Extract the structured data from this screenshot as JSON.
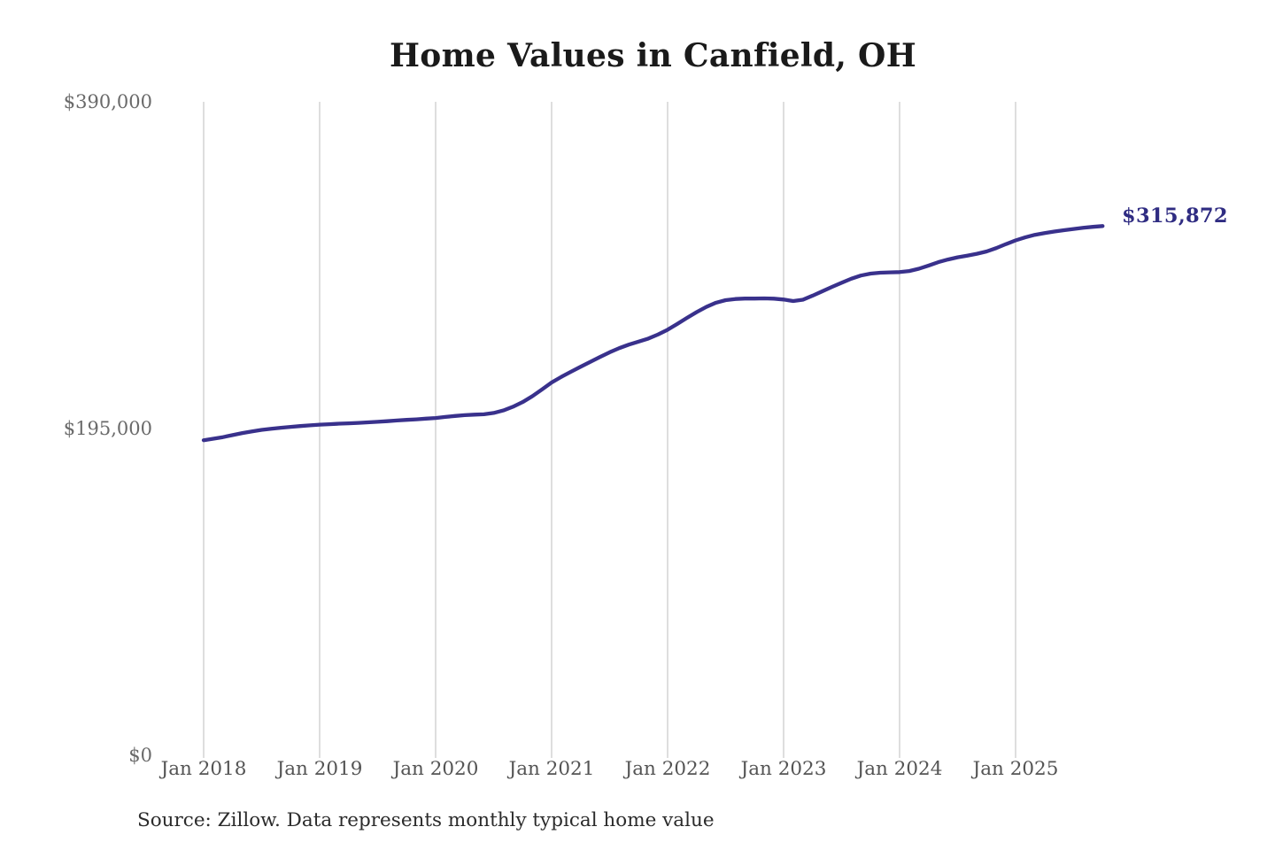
{
  "chart": {
    "title": "Home Values in Canfield, OH",
    "end_label": "$315,872",
    "source_note": "Source: Zillow. Data represents monthly typical home value"
  },
  "chart_data": {
    "type": "line",
    "title": "Home Values in Canfield, OH",
    "xlabel": "",
    "ylabel": "",
    "ylim": [
      0,
      390000
    ],
    "grid": "vertical-only",
    "legend": "none",
    "x_ticks": [
      "Jan 2018",
      "Jan 2019",
      "Jan 2020",
      "Jan 2021",
      "Jan 2022",
      "Jan 2023",
      "Jan 2024",
      "Jan 2025"
    ],
    "y_ticks": [
      {
        "label": "$0",
        "value": 0
      },
      {
        "label": "$195,000",
        "value": 195000
      },
      {
        "label": "$390,000",
        "value": 390000
      }
    ],
    "series": [
      {
        "name": "Monthly typical home value",
        "unit": "USD",
        "frequency": "monthly",
        "start_month": "Jan 2018",
        "end_month": "Oct 2025",
        "final_value": 315872,
        "values": [
          188000,
          188900,
          189900,
          191100,
          192300,
          193300,
          194200,
          194900,
          195500,
          196000,
          196500,
          196900,
          197300,
          197600,
          197900,
          198100,
          198400,
          198700,
          199000,
          199400,
          199800,
          200200,
          200500,
          200900,
          201300,
          201900,
          202500,
          203000,
          203300,
          203500,
          204300,
          205800,
          208000,
          210800,
          214300,
          218300,
          222500,
          225800,
          228900,
          231900,
          234800,
          237700,
          240500,
          243000,
          245100,
          246900,
          248700,
          251100,
          254000,
          257400,
          261000,
          264500,
          267600,
          270100,
          271600,
          272300,
          272600,
          272600,
          272700,
          272500,
          272000,
          271100,
          271900,
          274300,
          276900,
          279500,
          282000,
          284400,
          286300,
          287500,
          288000,
          288200,
          288400,
          289000,
          290400,
          292300,
          294300,
          295900,
          297200,
          298200,
          299300,
          300700,
          302700,
          305100,
          307300,
          309100,
          310600,
          311700,
          312600,
          313400,
          314100,
          314800,
          315400,
          315872
        ]
      }
    ],
    "colors": {
      "line": "#39318c",
      "end_label": "#2f2c82",
      "gridline": "#cccccc",
      "y_tick_text": "#6a6a6a",
      "x_tick_text": "#545454",
      "title_text": "#1a1a1a",
      "source_text": "#2b2b2b",
      "background": "#ffffff"
    }
  }
}
